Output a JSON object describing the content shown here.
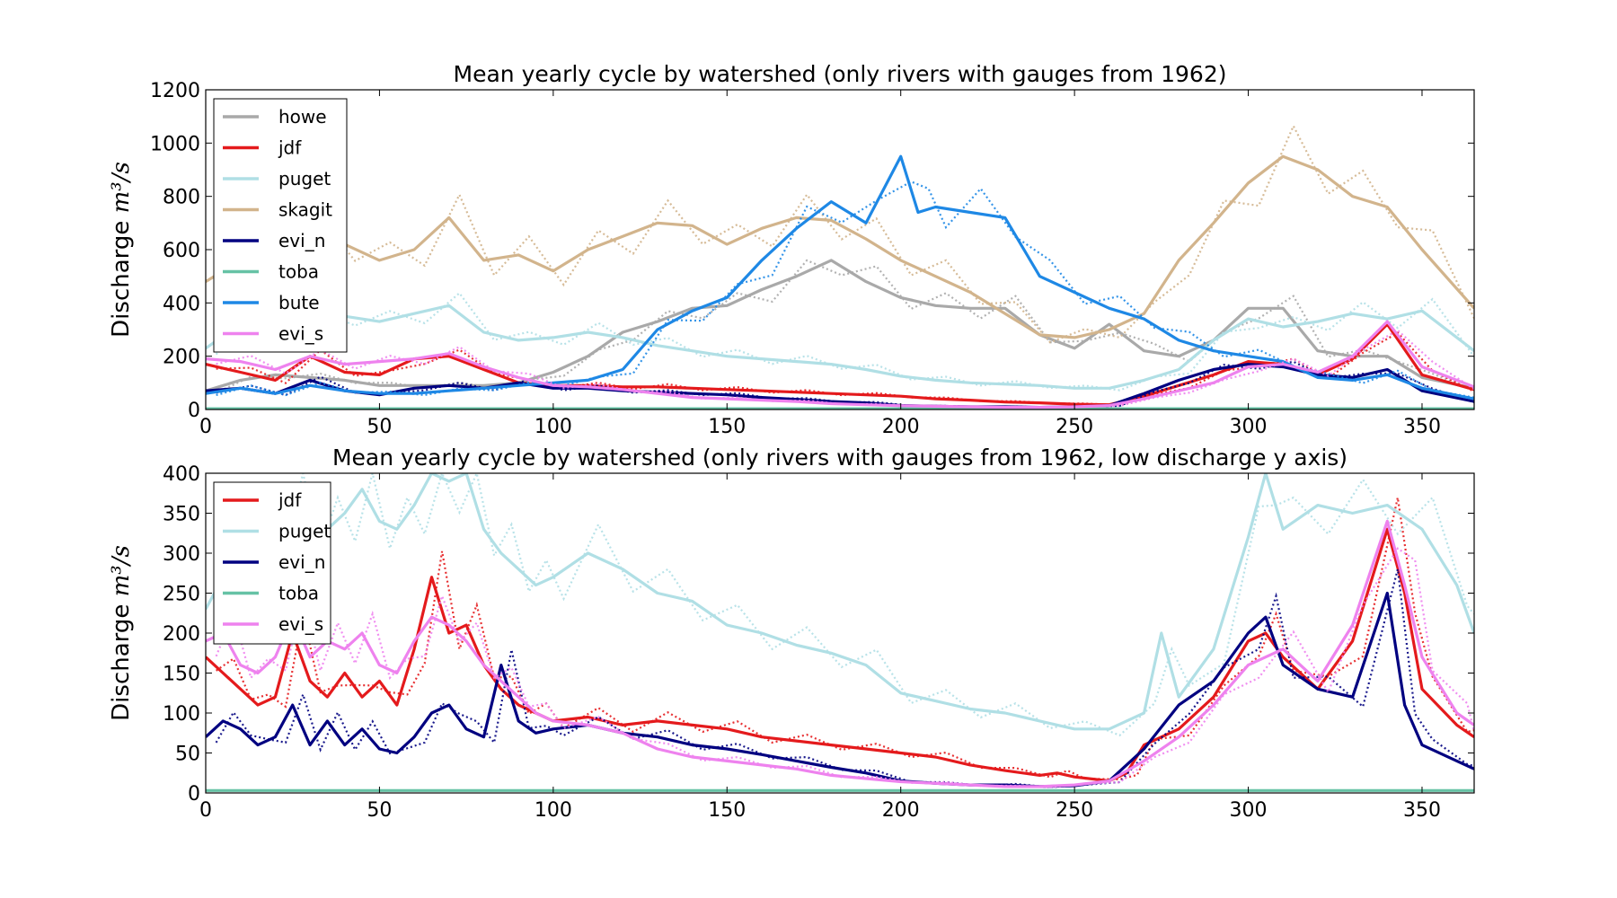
{
  "chart_data": [
    {
      "type": "line",
      "title": "Mean yearly cycle by watershed (only rivers with gauges from 1962)",
      "ylabel": "Discharge",
      "ylabel_units": "m³/s",
      "xlim": [
        0,
        365
      ],
      "ylim": [
        0,
        1200
      ],
      "xticks": [
        0,
        50,
        100,
        150,
        200,
        250,
        300,
        350
      ],
      "yticks": [
        0,
        200,
        400,
        600,
        800,
        1000,
        1200
      ],
      "legend_position": "top-left",
      "note": "solid and dotted line per watershed",
      "series": [
        {
          "name": "howe",
          "color": "#a9a9a9",
          "x": [
            0,
            10,
            20,
            30,
            40,
            50,
            60,
            70,
            80,
            90,
            100,
            110,
            120,
            130,
            140,
            150,
            160,
            170,
            180,
            190,
            200,
            210,
            220,
            230,
            240,
            250,
            260,
            270,
            280,
            290,
            300,
            310,
            320,
            330,
            340,
            350,
            365
          ],
          "values": [
            70,
            110,
            130,
            120,
            110,
            90,
            90,
            90,
            90,
            100,
            140,
            200,
            290,
            330,
            380,
            390,
            450,
            500,
            560,
            480,
            420,
            390,
            380,
            380,
            280,
            230,
            320,
            220,
            200,
            260,
            380,
            380,
            220,
            200,
            200,
            120,
            80
          ]
        },
        {
          "name": "jdf",
          "color": "#e41a1c",
          "x": [
            0,
            10,
            20,
            30,
            40,
            50,
            60,
            70,
            80,
            90,
            100,
            110,
            120,
            130,
            140,
            150,
            160,
            170,
            180,
            190,
            200,
            210,
            220,
            230,
            240,
            250,
            260,
            270,
            280,
            290,
            300,
            310,
            320,
            330,
            340,
            350,
            365
          ],
          "values": [
            170,
            140,
            110,
            200,
            140,
            130,
            190,
            200,
            150,
            100,
            90,
            90,
            85,
            85,
            80,
            75,
            70,
            65,
            60,
            55,
            50,
            40,
            35,
            28,
            25,
            20,
            18,
            50,
            90,
            130,
            180,
            170,
            130,
            190,
            320,
            130,
            75
          ]
        },
        {
          "name": "puget",
          "color": "#b0dfe5",
          "x": [
            0,
            10,
            20,
            30,
            40,
            50,
            60,
            70,
            80,
            90,
            100,
            110,
            120,
            130,
            140,
            150,
            160,
            170,
            180,
            190,
            200,
            210,
            220,
            230,
            240,
            250,
            260,
            270,
            280,
            290,
            300,
            310,
            320,
            330,
            340,
            350,
            365
          ],
          "values": [
            230,
            320,
            350,
            330,
            350,
            330,
            360,
            390,
            290,
            260,
            270,
            290,
            270,
            240,
            220,
            200,
            190,
            180,
            170,
            150,
            125,
            110,
            100,
            95,
            90,
            80,
            80,
            110,
            150,
            260,
            340,
            310,
            330,
            360,
            340,
            370,
            220
          ]
        },
        {
          "name": "skagit",
          "color": "#d2b48c",
          "x": [
            0,
            10,
            20,
            30,
            40,
            50,
            60,
            70,
            80,
            90,
            100,
            110,
            120,
            130,
            140,
            150,
            160,
            170,
            180,
            190,
            200,
            210,
            220,
            230,
            240,
            250,
            260,
            270,
            280,
            290,
            300,
            310,
            320,
            330,
            340,
            350,
            365
          ],
          "values": [
            480,
            560,
            650,
            640,
            620,
            560,
            600,
            720,
            560,
            580,
            520,
            600,
            650,
            700,
            690,
            620,
            680,
            720,
            710,
            640,
            560,
            500,
            440,
            360,
            280,
            270,
            300,
            360,
            560,
            700,
            850,
            950,
            900,
            800,
            760,
            600,
            380
          ]
        },
        {
          "name": "evi_n",
          "color": "#000080",
          "x": [
            0,
            10,
            20,
            30,
            40,
            50,
            60,
            70,
            80,
            90,
            100,
            110,
            120,
            130,
            140,
            150,
            160,
            170,
            180,
            190,
            200,
            210,
            220,
            230,
            240,
            250,
            260,
            270,
            280,
            290,
            300,
            310,
            320,
            330,
            340,
            350,
            365
          ],
          "values": [
            70,
            80,
            60,
            110,
            70,
            55,
            80,
            90,
            80,
            100,
            80,
            80,
            70,
            65,
            60,
            55,
            45,
            38,
            30,
            25,
            15,
            12,
            10,
            10,
            8,
            10,
            15,
            60,
            110,
            150,
            170,
            160,
            130,
            120,
            150,
            70,
            30
          ]
        },
        {
          "name": "toba",
          "color": "#66c2a5",
          "x": [
            0,
            365
          ],
          "values": [
            3,
            3
          ]
        },
        {
          "name": "bute",
          "color": "#1e88e5",
          "x": [
            0,
            10,
            20,
            30,
            40,
            50,
            60,
            70,
            80,
            90,
            100,
            110,
            120,
            130,
            140,
            150,
            160,
            170,
            180,
            190,
            200,
            205,
            210,
            220,
            230,
            240,
            250,
            260,
            270,
            280,
            290,
            300,
            310,
            320,
            330,
            340,
            350,
            365
          ],
          "values": [
            60,
            80,
            60,
            90,
            70,
            60,
            60,
            70,
            80,
            90,
            100,
            110,
            150,
            300,
            370,
            420,
            560,
            680,
            780,
            700,
            950,
            740,
            760,
            740,
            720,
            500,
            440,
            380,
            340,
            260,
            220,
            200,
            180,
            120,
            110,
            130,
            80,
            40
          ]
        },
        {
          "name": "evi_s",
          "color": "#ee82ee",
          "x": [
            0,
            10,
            20,
            30,
            40,
            50,
            60,
            70,
            80,
            90,
            100,
            110,
            120,
            130,
            140,
            150,
            160,
            170,
            180,
            190,
            200,
            210,
            220,
            230,
            240,
            250,
            260,
            270,
            280,
            290,
            300,
            310,
            320,
            330,
            340,
            350,
            365
          ],
          "values": [
            190,
            180,
            150,
            200,
            170,
            180,
            190,
            210,
            160,
            120,
            90,
            85,
            75,
            60,
            45,
            40,
            35,
            30,
            22,
            18,
            14,
            12,
            10,
            8,
            8,
            10,
            15,
            40,
            70,
            100,
            160,
            170,
            140,
            200,
            330,
            160,
            85
          ]
        }
      ]
    },
    {
      "type": "line",
      "title": "Mean yearly cycle by watershed (only rivers with gauges from 1962, low discharge y axis)",
      "ylabel": "Discharge",
      "ylabel_units": "m³/s",
      "xlim": [
        0,
        365
      ],
      "ylim": [
        0,
        400
      ],
      "xticks": [
        0,
        50,
        100,
        150,
        200,
        250,
        300,
        350
      ],
      "yticks": [
        0,
        50,
        100,
        150,
        200,
        250,
        300,
        350,
        400
      ],
      "legend_position": "top-left",
      "series": [
        {
          "name": "jdf",
          "color": "#e41a1c",
          "x": [
            0,
            5,
            10,
            15,
            20,
            25,
            30,
            35,
            40,
            45,
            50,
            55,
            60,
            65,
            70,
            75,
            80,
            85,
            90,
            95,
            100,
            110,
            120,
            130,
            140,
            150,
            160,
            170,
            180,
            190,
            200,
            210,
            220,
            230,
            240,
            245,
            250,
            260,
            265,
            270,
            280,
            290,
            300,
            305,
            310,
            320,
            330,
            340,
            345,
            350,
            360,
            365
          ],
          "values": [
            170,
            150,
            130,
            110,
            120,
            200,
            140,
            120,
            150,
            120,
            140,
            110,
            180,
            270,
            200,
            210,
            160,
            130,
            110,
            100,
            90,
            95,
            85,
            90,
            85,
            80,
            70,
            65,
            60,
            55,
            50,
            45,
            35,
            28,
            22,
            25,
            20,
            15,
            25,
            60,
            80,
            120,
            190,
            200,
            170,
            130,
            190,
            330,
            250,
            130,
            85,
            70
          ]
        },
        {
          "name": "puget",
          "color": "#b0dfe5",
          "x": [
            0,
            5,
            10,
            15,
            20,
            25,
            30,
            35,
            40,
            45,
            50,
            55,
            60,
            65,
            70,
            75,
            80,
            85,
            90,
            95,
            100,
            110,
            120,
            130,
            140,
            150,
            160,
            170,
            180,
            190,
            200,
            210,
            220,
            230,
            240,
            250,
            260,
            270,
            275,
            280,
            290,
            300,
            305,
            310,
            320,
            330,
            340,
            350,
            360,
            365
          ],
          "values": [
            230,
            270,
            320,
            330,
            350,
            360,
            340,
            330,
            350,
            380,
            340,
            330,
            360,
            400,
            390,
            420,
            330,
            300,
            280,
            260,
            270,
            300,
            280,
            250,
            240,
            210,
            200,
            185,
            175,
            160,
            125,
            115,
            105,
            100,
            90,
            80,
            80,
            100,
            200,
            120,
            180,
            320,
            400,
            330,
            360,
            350,
            360,
            330,
            260,
            200
          ]
        },
        {
          "name": "evi_n",
          "color": "#000080",
          "x": [
            0,
            5,
            10,
            15,
            20,
            25,
            30,
            35,
            40,
            45,
            50,
            55,
            60,
            65,
            70,
            75,
            80,
            85,
            90,
            95,
            100,
            110,
            120,
            130,
            140,
            150,
            160,
            170,
            180,
            190,
            200,
            210,
            220,
            230,
            240,
            250,
            260,
            270,
            280,
            290,
            300,
            305,
            310,
            320,
            330,
            340,
            345,
            350,
            360,
            365
          ],
          "values": [
            70,
            90,
            80,
            60,
            70,
            110,
            60,
            90,
            60,
            80,
            55,
            50,
            70,
            100,
            110,
            80,
            70,
            160,
            90,
            75,
            80,
            85,
            75,
            70,
            60,
            55,
            48,
            40,
            32,
            25,
            15,
            12,
            10,
            10,
            8,
            9,
            15,
            55,
            110,
            140,
            200,
            220,
            160,
            130,
            120,
            250,
            110,
            60,
            40,
            30
          ]
        },
        {
          "name": "toba",
          "color": "#66c2a5",
          "x": [
            0,
            365
          ],
          "values": [
            3,
            3
          ]
        },
        {
          "name": "evi_s",
          "color": "#ee82ee",
          "x": [
            0,
            5,
            10,
            15,
            20,
            25,
            30,
            35,
            40,
            45,
            50,
            55,
            60,
            65,
            70,
            75,
            80,
            85,
            90,
            95,
            100,
            110,
            120,
            130,
            140,
            150,
            160,
            170,
            180,
            190,
            200,
            210,
            220,
            230,
            240,
            250,
            260,
            270,
            280,
            290,
            300,
            310,
            320,
            330,
            340,
            345,
            350,
            360,
            365
          ],
          "values": [
            190,
            200,
            160,
            150,
            170,
            220,
            170,
            190,
            180,
            200,
            160,
            150,
            190,
            220,
            210,
            190,
            160,
            140,
            120,
            100,
            90,
            85,
            75,
            55,
            45,
            40,
            35,
            30,
            22,
            18,
            14,
            12,
            10,
            8,
            8,
            10,
            15,
            40,
            70,
            110,
            160,
            180,
            140,
            210,
            340,
            260,
            170,
            100,
            85
          ]
        }
      ]
    }
  ]
}
